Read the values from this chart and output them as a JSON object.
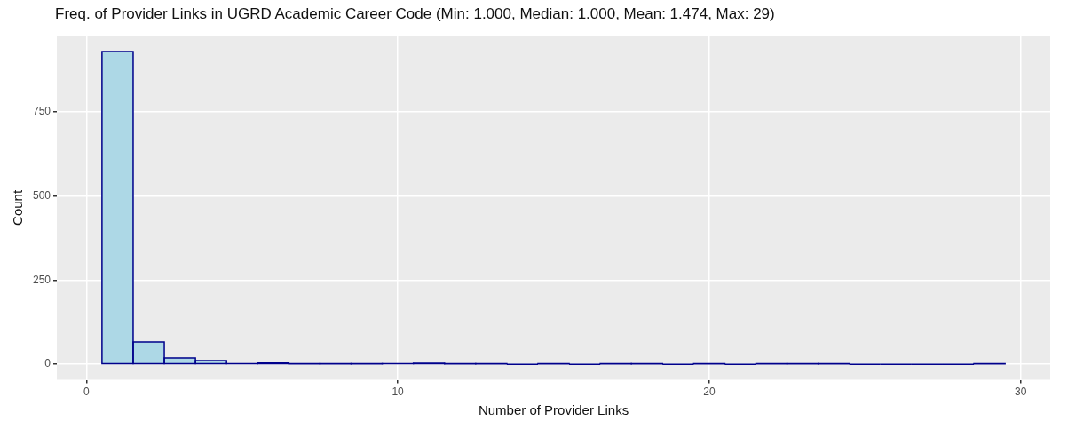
{
  "chart_data": {
    "type": "histogram",
    "title": "Freq. of Provider Links in UGRD Academic Career Code (Min: 1.000, Median: 1.000, Mean: 1.474, Max: 29)",
    "xlabel": "Number of Provider Links",
    "ylabel": "Count",
    "bins": [
      0.5,
      1.5,
      2.5,
      3.5,
      4.5,
      5.5,
      6.5,
      7.5,
      8.5,
      9.5,
      10.5,
      11.5,
      12.5,
      13.5,
      14.5,
      15.5,
      16.5,
      17.5,
      18.5,
      19.5,
      20.5,
      21.5,
      22.5,
      23.5,
      24.5,
      25.5,
      26.5,
      27.5,
      28.5,
      29.5
    ],
    "values": [
      928,
      66,
      19,
      11,
      2,
      4,
      1,
      1,
      1,
      2,
      3,
      1,
      1,
      0,
      1,
      0,
      1,
      1,
      0,
      1,
      0,
      1,
      1,
      1,
      0,
      0,
      0,
      0,
      1
    ],
    "color": "#add8e6",
    "xlim": [
      -0.95,
      30.95
    ],
    "xticks": [
      0,
      10,
      20,
      30
    ],
    "ylim": [
      -46,
      975
    ],
    "yticks": [
      0,
      250,
      500,
      750
    ],
    "grid": true
  }
}
